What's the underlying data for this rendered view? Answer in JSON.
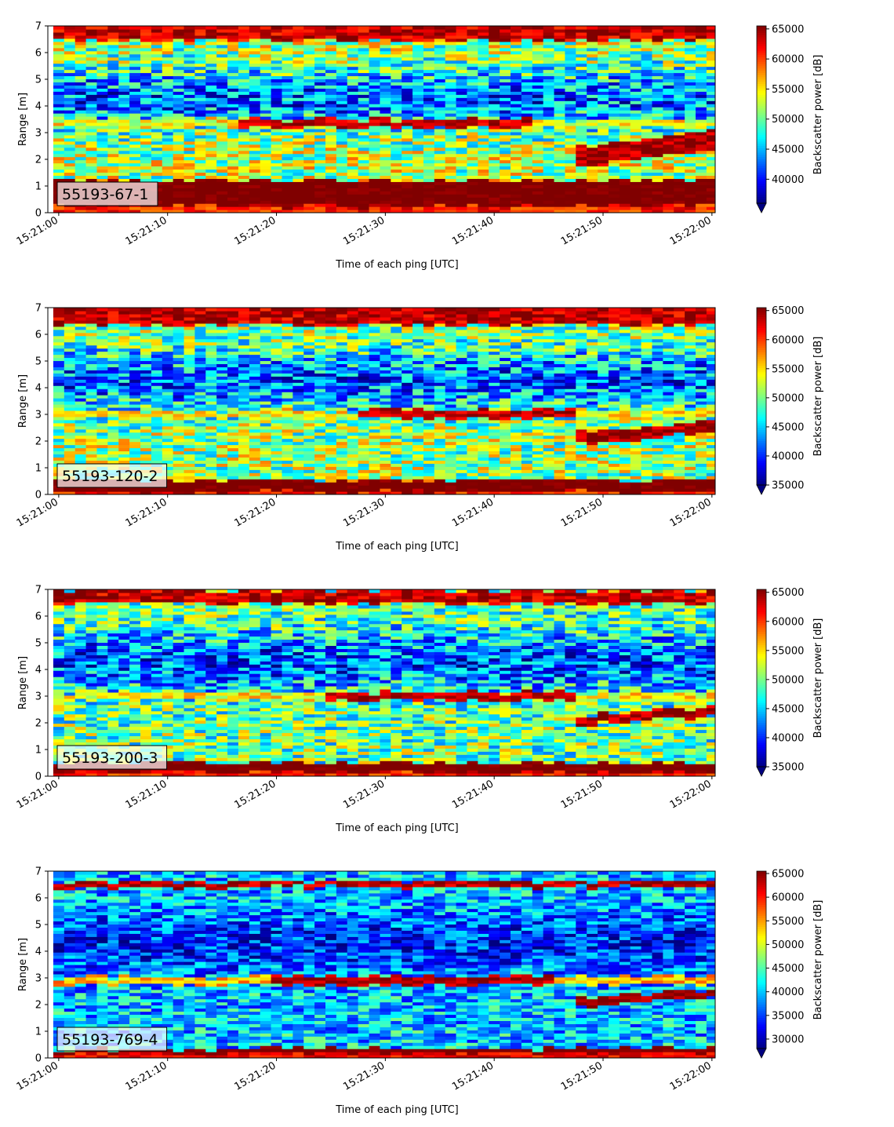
{
  "chart_data": [
    {
      "type": "heatmap",
      "label": "55193-67-1",
      "xlabel": "Time of each ping [UTC]",
      "ylabel": "Range [m]",
      "xticks": [
        "15:21:00",
        "15:21:10",
        "15:21:20",
        "15:21:30",
        "15:21:40",
        "15:21:50",
        "15:22:00"
      ],
      "xlim_seconds": [
        -1,
        60.3
      ],
      "ylim": [
        0,
        7
      ],
      "yticks": [
        0,
        1,
        2,
        3,
        4,
        5,
        6,
        7
      ],
      "colorbar": {
        "label": "Backscatter power [dB]",
        "min": 36000,
        "max": 65500,
        "ticks": [
          40000,
          45000,
          50000,
          55000,
          60000,
          65000
        ],
        "extend": "min"
      },
      "features": {
        "bottom_band": [
          0.25,
          1.2
        ],
        "surface_band": [
          6.45,
          7.0
        ],
        "line_at": 3.35,
        "line_span": [
          17,
          43
        ],
        "rise_from": 48,
        "rise_to": 2.7,
        "rise_thickness": 0.75,
        "bg_base": 52000,
        "mid_base": 42500
      }
    },
    {
      "type": "heatmap",
      "label": "55193-120-2",
      "xlabel": "Time of each ping [UTC]",
      "ylabel": "Range [m]",
      "xticks": [
        "15:21:00",
        "15:21:10",
        "15:21:20",
        "15:21:30",
        "15:21:40",
        "15:21:50",
        "15:22:00"
      ],
      "xlim_seconds": [
        -1,
        60.3
      ],
      "ylim": [
        0,
        7
      ],
      "yticks": [
        0,
        1,
        2,
        3,
        4,
        5,
        6,
        7
      ],
      "colorbar": {
        "label": "Backscatter power [dB]",
        "min": 35000,
        "max": 65500,
        "ticks": [
          35000,
          40000,
          45000,
          50000,
          55000,
          60000,
          65000
        ],
        "extend": "min"
      },
      "features": {
        "bottom_band": [
          0.1,
          0.55
        ],
        "surface_band": [
          6.35,
          7.0
        ],
        "line_at": 3.0,
        "line_span": [
          28,
          47
        ],
        "rise_from": 48,
        "rise_to": 2.55,
        "rise_thickness": 0.45,
        "bg_base": 51000,
        "mid_base": 41500
      }
    },
    {
      "type": "heatmap",
      "label": "55193-200-3",
      "xlabel": "Time of each ping [UTC]",
      "ylabel": "Range [m]",
      "xticks": [
        "15:21:00",
        "15:21:10",
        "15:21:20",
        "15:21:30",
        "15:21:40",
        "15:21:50",
        "15:22:00"
      ],
      "xlim_seconds": [
        -1,
        60.3
      ],
      "ylim": [
        0,
        7
      ],
      "yticks": [
        0,
        1,
        2,
        3,
        4,
        5,
        6,
        7
      ],
      "colorbar": {
        "label": "Backscatter power [dB]",
        "min": 35000,
        "max": 65500,
        "ticks": [
          35000,
          40000,
          45000,
          50000,
          55000,
          60000,
          65000
        ],
        "extend": "min"
      },
      "features": {
        "bottom_band": [
          0.15,
          0.5
        ],
        "surface_band": [
          6.5,
          6.95
        ],
        "line_at": 3.0,
        "line_span": [
          25,
          47
        ],
        "rise_from": 48,
        "rise_to": 2.45,
        "rise_thickness": 0.35,
        "bg_base": 49500,
        "mid_base": 41000
      }
    },
    {
      "type": "heatmap",
      "label": "55193-769-4",
      "xlabel": "Time of each ping [UTC]",
      "ylabel": "Range [m]",
      "xticks": [
        "15:21:00",
        "15:21:10",
        "15:21:20",
        "15:21:30",
        "15:21:40",
        "15:21:50",
        "15:22:00"
      ],
      "xlim_seconds": [
        -1,
        60.3
      ],
      "ylim": [
        0,
        7
      ],
      "yticks": [
        0,
        1,
        2,
        3,
        4,
        5,
        6,
        7
      ],
      "colorbar": {
        "label": "Backscatter power [dB]",
        "min": 28000,
        "max": 65500,
        "ticks": [
          30000,
          35000,
          40000,
          45000,
          50000,
          55000,
          60000,
          65000
        ],
        "extend": "min"
      },
      "features": {
        "bottom_band": [
          0.2,
          0.35
        ],
        "surface_band": [
          6.4,
          6.6
        ],
        "line_at": 2.9,
        "line_span": [
          20,
          45
        ],
        "rise_from": 48,
        "rise_to": 2.4,
        "rise_thickness": 0.3,
        "bg_base": 40000,
        "mid_base": 33500
      }
    }
  ]
}
